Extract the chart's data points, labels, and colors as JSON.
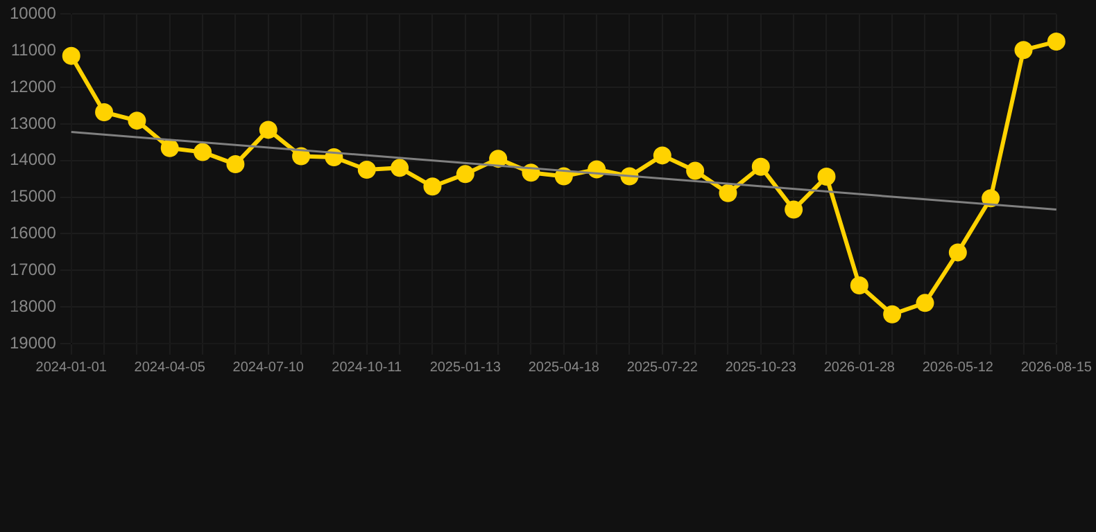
{
  "chart_data": {
    "type": "line",
    "categories": [
      "2024-01-01",
      null,
      null,
      "2024-04-05",
      null,
      null,
      "2024-07-10",
      null,
      null,
      "2024-10-11",
      null,
      null,
      "2025-01-13",
      null,
      null,
      "2025-04-18",
      null,
      null,
      "2025-07-22",
      null,
      null,
      "2025-10-23",
      null,
      null,
      "2026-01-28",
      null,
      null,
      "2026-05-12",
      null,
      null,
      "2026-08-15"
    ],
    "series": [
      {
        "color": "#ffd200",
        "marker": "circle",
        "values": [
          11140,
          12680,
          12910,
          13660,
          13770,
          14100,
          13160,
          13880,
          13910,
          14250,
          14200,
          14710,
          14370,
          13950,
          14330,
          14430,
          14240,
          14430,
          13860,
          14280,
          14890,
          14170,
          15340,
          14440,
          17410,
          18200,
          17890,
          16510,
          15030,
          10980,
          10750
        ]
      },
      {
        "type": "line",
        "color": "#808080",
        "marker": "none",
        "values": [
          13220,
          null,
          null,
          null,
          null,
          null,
          null,
          null,
          null,
          null,
          null,
          null,
          null,
          null,
          null,
          null,
          null,
          null,
          null,
          null,
          null,
          null,
          null,
          null,
          null,
          null,
          null,
          null,
          null,
          null,
          15340
        ]
      }
    ],
    "ylim": [
      19000,
      10000
    ],
    "yticks": [
      10000,
      11000,
      12000,
      13000,
      14000,
      15000,
      16000,
      17000,
      18000,
      19000
    ],
    "grid": true,
    "legend": false
  }
}
